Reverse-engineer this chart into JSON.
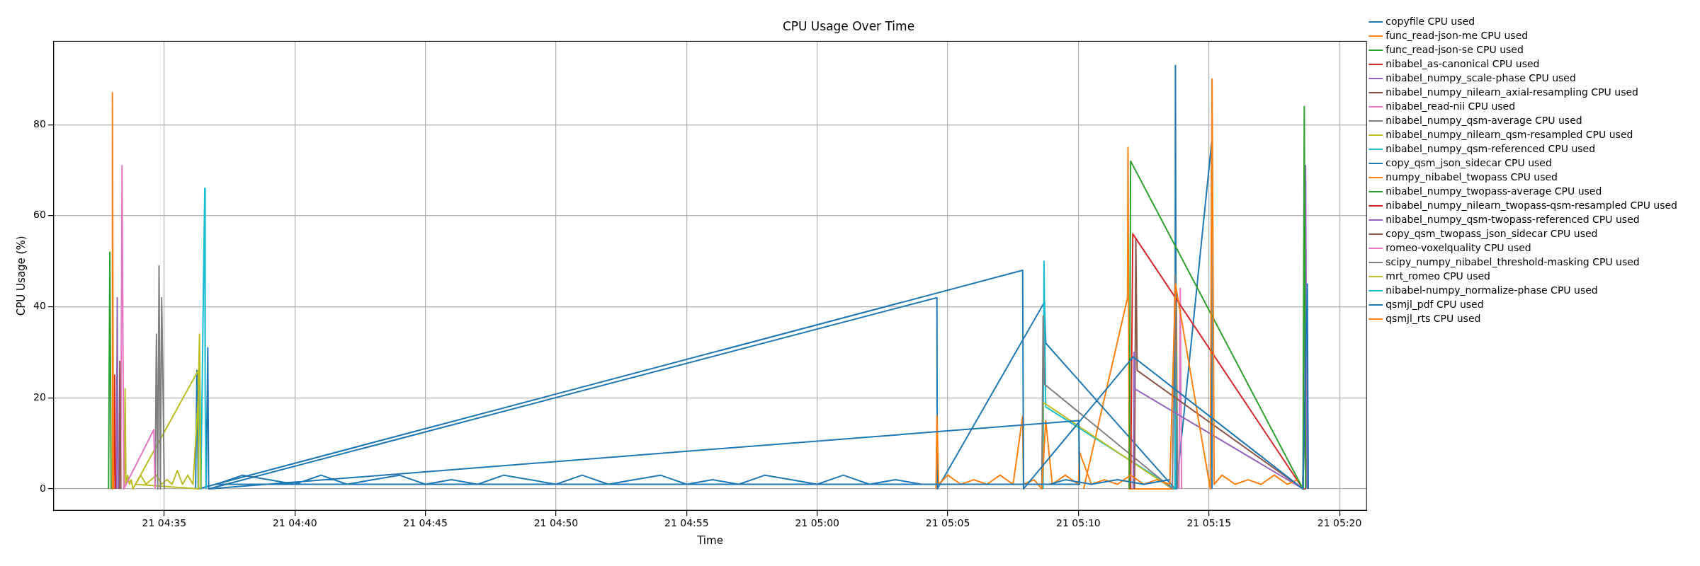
{
  "chart_data": {
    "type": "line",
    "title": "CPU Usage Over Time",
    "xlabel": "Time",
    "ylabel": "CPU Usage (%)",
    "xlim": [
      "--01-21T04:30:46",
      "--01-21T05:21:02"
    ],
    "ylim": [
      -4.7,
      98.3
    ],
    "xticks": [
      {
        "value": "--01-21T04:35",
        "label": "21 04:35"
      },
      {
        "value": "--01-21T04:40",
        "label": "21 04:40"
      },
      {
        "value": "--01-21T04:45",
        "label": "21 04:45"
      },
      {
        "value": "--01-21T04:50",
        "label": "21 04:50"
      },
      {
        "value": "--01-21T04:55",
        "label": "21 04:55"
      },
      {
        "value": "--01-21T05:00",
        "label": "21 05:00"
      },
      {
        "value": "--01-21T05:05",
        "label": "21 05:05"
      },
      {
        "value": "--01-21T05:10",
        "label": "21 05:10"
      },
      {
        "value": "--01-21T05:15",
        "label": "21 05:15"
      },
      {
        "value": "--01-21T05:20",
        "label": "21 05:20"
      }
    ],
    "yticks": [
      0,
      20,
      40,
      60,
      80
    ],
    "grid": true,
    "legend": "top right",
    "series": [
      {
        "name": "copyfile CPU used",
        "color": "#1f77b4",
        "x": [
          "--01-21T04:36:42",
          "--01-21T05:10:01",
          "--01-21T05:10:03",
          "--01-21T04:37:00",
          "--01-21T04:38:00",
          "--01-21T04:39:00",
          "--01-21T04:40:00",
          "--01-21T04:41:00",
          "--01-21T04:42:00",
          "--01-21T04:43:00",
          "--01-21T04:44:00",
          "--01-21T04:45:00",
          "--01-21T04:46:00",
          "--01-21T04:47:00",
          "--01-21T04:48:00",
          "--01-21T04:49:00",
          "--01-21T04:50:00",
          "--01-21T04:51:00",
          "--01-21T04:52:00",
          "--01-21T04:53:00",
          "--01-21T04:54:00",
          "--01-21T04:55:00",
          "--01-21T04:56:00",
          "--01-21T04:57:00",
          "--01-21T04:58:00",
          "--01-21T04:59:00",
          "--01-21T05:00:00",
          "--01-21T05:01:00",
          "--01-21T05:02:00",
          "--01-21T05:03:00",
          "--01-21T05:04:00",
          "--01-21T05:08:54",
          "--01-21T05:09:30",
          "--01-21T05:10:30",
          "--01-21T05:11:30",
          "--01-21T05:12:30",
          "--01-21T05:13:30"
        ],
        "values": [
          0,
          15,
          1,
          1,
          3,
          2,
          1,
          3,
          1,
          2,
          3,
          1,
          2,
          1,
          3,
          2,
          1,
          3,
          1,
          2,
          3,
          1,
          2,
          1,
          3,
          2,
          1,
          3,
          1,
          2,
          1,
          1,
          2,
          1,
          2,
          1,
          2
        ]
      },
      {
        "name": "func_read-json-me CPU used",
        "color": "#ff7f0e",
        "x": [
          "--01-21T04:33:00",
          "--01-21T04:33:01",
          "--01-21T04:33:03"
        ],
        "values": [
          0,
          87,
          0
        ]
      },
      {
        "name": "func_read-json-se CPU used",
        "color": "#2ca02c",
        "x": [
          "--01-21T04:32:52",
          "--01-21T04:32:55",
          "--01-21T04:32:58"
        ],
        "values": [
          0,
          52,
          0
        ]
      },
      {
        "name": "nibabel_as-canonical CPU used",
        "color": "#d62728",
        "x": [
          "--01-21T04:33:04",
          "--01-21T04:33:06",
          "--01-21T04:33:08"
        ],
        "values": [
          0,
          25,
          0
        ]
      },
      {
        "name": "nibabel_numpy_scale-phase CPU used",
        "color": "#9467bd",
        "x": [
          "--01-21T04:33:10",
          "--01-21T04:33:12",
          "--01-21T04:33:14"
        ],
        "values": [
          0,
          42,
          0
        ]
      },
      {
        "name": "nibabel_numpy_nilearn_axial-resampling CPU used",
        "color": "#8c564b",
        "x": [
          "--01-21T04:33:16",
          "--01-21T04:33:18",
          "--01-21T04:33:20"
        ],
        "values": [
          0,
          28,
          0
        ]
      },
      {
        "name": "nibabel_read-nii CPU used",
        "color": "#e377c2",
        "x": [
          "--01-21T04:33:20",
          "--01-21T04:33:23",
          "--01-21T04:33:27",
          "--01-21T04:34:36",
          "--01-21T04:34:39"
        ],
        "values": [
          0,
          71,
          0,
          13,
          0
        ]
      },
      {
        "name": "nibabel_numpy_qsm-average CPU used",
        "color": "#7f7f7f",
        "x": [
          "--01-21T04:34:39",
          "--01-21T04:34:42",
          "--01-21T04:34:45",
          "--01-21T04:34:48",
          "--01-21T04:34:51",
          "--01-21T04:34:54",
          "--01-21T04:34:57",
          "--01-21T04:35:00"
        ],
        "values": [
          0,
          34,
          0,
          49,
          0,
          42,
          23,
          0
        ]
      },
      {
        "name": "nibabel_numpy_nilearn_qsm-resampled CPU used",
        "color": "#bcbd22",
        "x": [
          "--01-21T04:33:28",
          "--01-21T04:33:30",
          "--01-21T04:33:32",
          "--01-21T04:33:36",
          "--01-21T04:33:40",
          "--01-21T04:33:44",
          "--01-21T04:33:48",
          "--01-21T04:36:18",
          "--01-21T04:36:19",
          "--01-21T04:33:54",
          "--01-21T04:34:06",
          "--01-21T04:34:18",
          "--01-21T04:34:30",
          "--01-21T04:34:42",
          "--01-21T04:34:54",
          "--01-21T04:35:06",
          "--01-21T04:35:18",
          "--01-21T04:35:30",
          "--01-21T04:35:42",
          "--01-21T04:35:54",
          "--01-21T04:36:06",
          "--01-21T04:36:18",
          "--01-21T04:36:21",
          "--01-21T04:36:24"
        ],
        "values": [
          0,
          22,
          1,
          3,
          1,
          2,
          0,
          26,
          0,
          1,
          3,
          1,
          2,
          3,
          1,
          2,
          1,
          4,
          1,
          3,
          1,
          20,
          34,
          0
        ]
      },
      {
        "name": "nibabel_numpy_qsm-referenced CPU used",
        "color": "#17becf",
        "x": [
          "--01-21T04:36:18",
          "--01-21T04:36:21",
          "--01-21T04:36:24",
          "--01-21T04:36:33",
          "--01-21T04:36:34",
          "--01-21T04:36:36"
        ],
        "values": [
          0,
          30,
          0,
          66,
          20,
          0
        ]
      },
      {
        "name": "copy_qsm_json_sidecar CPU used",
        "color": "#1f77b4",
        "x": [
          "--01-21T04:36:12",
          "--01-21T04:36:15",
          "--01-21T04:36:18",
          "--01-21T05:07:52",
          "--01-21T05:07:54",
          "--01-21T05:12:06",
          "--01-21T05:18:36",
          "--01-21T05:18:46",
          "--01-21T05:18:48"
        ],
        "values": [
          0,
          26,
          0,
          48,
          0,
          29,
          0,
          45,
          0
        ]
      },
      {
        "name": "numpy_nibabel_twopass CPU used",
        "color": "#ff7f0e",
        "x": [
          "--01-21T05:04:33",
          "--01-21T05:04:35",
          "--01-21T05:04:39",
          "--01-21T05:05:00",
          "--01-21T05:05:30",
          "--01-21T05:06:00",
          "--01-21T05:06:30",
          "--01-21T05:07:00",
          "--01-21T05:07:30",
          "--01-21T05:07:52",
          "--01-21T05:07:54",
          "--01-21T05:08:18",
          "--01-21T05:08:36",
          "--01-21T05:08:45",
          "--01-21T05:09:00",
          "--01-21T05:09:30",
          "--01-21T05:10:00",
          "--01-21T05:10:03",
          "--01-21T05:10:30",
          "--01-21T05:11:00",
          "--01-21T05:11:30",
          "--01-21T05:12:00",
          "--01-21T05:12:30",
          "--01-21T05:13:00",
          "--01-21T05:13:30",
          "--01-21T05:13:43",
          "--01-21T05:15:03",
          "--01-21T05:15:07",
          "--01-21T05:15:12",
          "--01-21T05:15:30",
          "--01-21T05:16:00",
          "--01-21T05:16:30",
          "--01-21T05:17:00",
          "--01-21T05:17:30",
          "--01-21T05:18:00",
          "--01-21T05:18:24"
        ],
        "values": [
          0,
          16,
          1,
          3,
          1,
          2,
          1,
          3,
          1,
          16,
          1,
          2,
          0,
          15,
          1,
          3,
          1,
          8,
          1,
          2,
          1,
          3,
          1,
          2,
          1,
          45,
          0,
          90,
          1,
          3,
          1,
          2,
          1,
          3,
          1,
          2
        ]
      },
      {
        "name": "nibabel_numpy_twopass-average CPU used",
        "color": "#2ca02c",
        "x": [
          "--01-21T05:11:57",
          "--01-21T05:12:00",
          "--01-21T05:18:36",
          "--01-21T05:18:39",
          "--01-21T05:18:42"
        ],
        "values": [
          0,
          72,
          0,
          84,
          0
        ]
      },
      {
        "name": "nibabel_numpy_nilearn_twopass-qsm-resampled CPU used",
        "color": "#d62728",
        "x": [
          "--01-21T05:12:00",
          "--01-21T05:12:05",
          "--01-21T05:18:36",
          "--01-21T05:18:42"
        ],
        "values": [
          0,
          56,
          0,
          0
        ]
      },
      {
        "name": "nibabel_numpy_qsm-twopass-referenced CPU used",
        "color": "#9467bd",
        "x": [
          "--01-21T05:12:06",
          "--01-21T05:12:08",
          "--01-21T05:12:09",
          "--01-21T05:18:36",
          "--01-21T05:18:42",
          "--01-21T05:18:45"
        ],
        "values": [
          0,
          30,
          22,
          0,
          71,
          0
        ]
      },
      {
        "name": "copy_qsm_twopass_json_sidecar CPU used",
        "color": "#8c564b",
        "x": [
          "--01-21T05:12:09",
          "--01-21T05:12:12",
          "--01-21T05:12:15",
          "--01-21T05:18:36",
          "--01-21T05:18:45",
          "--01-21T05:18:48"
        ],
        "values": [
          0,
          55,
          26,
          0,
          37,
          0
        ]
      },
      {
        "name": "romeo-voxelquality CPU used",
        "color": "#e377c2",
        "x": [
          "--01-21T05:13:51",
          "--01-21T05:13:54",
          "--01-21T05:13:57"
        ],
        "values": [
          0,
          44,
          0
        ]
      },
      {
        "name": "scipy_numpy_nibabel_threshold-masking CPU used",
        "color": "#7f7f7f",
        "x": [
          "--01-21T05:08:36",
          "--01-21T05:08:39",
          "--01-21T05:08:42",
          "--01-21T05:13:36",
          "--01-21T05:13:42",
          "--01-21T05:13:45",
          "--01-21T05:13:48"
        ],
        "values": [
          0,
          38,
          23,
          0,
          47,
          20,
          0
        ]
      },
      {
        "name": "mrt_romeo CPU used",
        "color": "#bcbd22",
        "x": [
          "--01-21T05:08:36",
          "--01-21T05:08:39",
          "--01-21T05:13:36"
        ],
        "values": [
          0,
          19,
          0
        ]
      },
      {
        "name": "nibabel-numpy_normalize-phase CPU used",
        "color": "#17becf",
        "x": [
          "--01-21T05:08:39",
          "--01-21T05:08:41",
          "--01-21T05:08:45",
          "--01-21T05:13:42",
          "--01-21T05:13:45",
          "--01-21T05:13:48"
        ],
        "values": [
          0,
          50,
          18,
          0,
          30,
          0
        ]
      },
      {
        "name": "qsmjl_pdf CPU used",
        "color": "#1f77b4",
        "x": [
          "--01-21T04:36:36",
          "--01-21T04:36:40",
          "--01-21T04:36:42",
          "--01-21T05:04:35",
          "--01-21T05:04:36",
          "--01-21T05:08:42",
          "--01-21T05:08:45",
          "--01-21T05:13:42",
          "--01-21T05:13:43",
          "--01-21T05:13:45",
          "--01-21T05:15:06",
          "--01-21T05:15:07"
        ],
        "values": [
          0,
          31,
          0,
          42,
          0,
          41,
          32,
          0,
          93,
          0,
          76,
          0
        ]
      },
      {
        "name": "qsmjl_rts CPU used",
        "color": "#ff7f0e",
        "x": [
          "--01-21T05:10:12",
          "--01-21T05:11:53",
          "--01-21T05:11:54",
          "--01-21T05:11:57",
          "--01-21T05:13:42",
          "--01-21T05:13:45",
          "--01-21T05:13:48"
        ],
        "values": [
          0,
          42,
          75,
          0,
          0,
          43,
          0
        ]
      }
    ]
  }
}
